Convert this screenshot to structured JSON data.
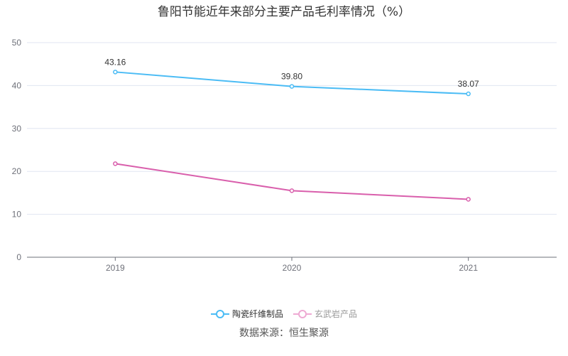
{
  "chart_data": {
    "type": "line",
    "title": "鲁阳节能近年来部分主要产品毛利率情况（%）",
    "categories": [
      "2019",
      "2020",
      "2021"
    ],
    "series": [
      {
        "name": "陶瓷纤维制品",
        "values": [
          43.16,
          39.8,
          38.07
        ],
        "labels": [
          "43.16",
          "39.80",
          "38.07"
        ],
        "color": "#4bbcf5",
        "legend_active": true
      },
      {
        "name": "玄武岩产品",
        "values": [
          21.8,
          15.5,
          13.5
        ],
        "color": "#d95fac",
        "legend_active": false,
        "legend_color": "#eeaad3"
      }
    ],
    "ylim": [
      0,
      50
    ],
    "yticks": [
      "0",
      "10",
      "20",
      "30",
      "40",
      "50"
    ],
    "grid": true,
    "legend_position": "bottom"
  },
  "source": "数据来源：恒生聚源"
}
